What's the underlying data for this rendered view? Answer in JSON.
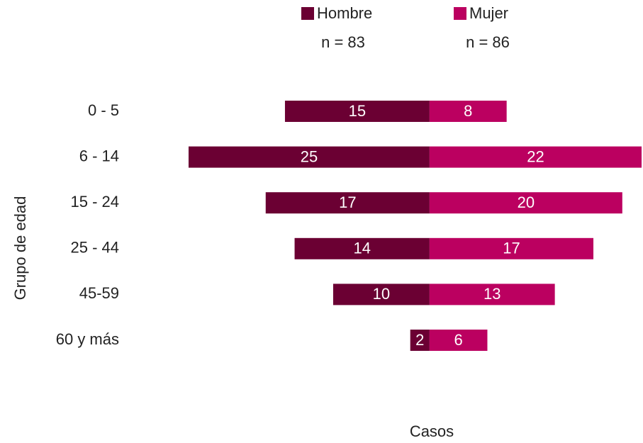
{
  "chart_data": {
    "type": "pyramid",
    "categories": [
      "0 - 5",
      "6 - 14",
      "15 - 24",
      "25 - 44",
      "45-59",
      "60 y más"
    ],
    "series": [
      {
        "name": "Hombre",
        "color": "#6b0033",
        "values": [
          15,
          25,
          17,
          14,
          10,
          2
        ]
      },
      {
        "name": "Mujer",
        "color": "#bb0060",
        "values": [
          8,
          22,
          20,
          17,
          13,
          6
        ]
      }
    ],
    "annotations": [
      "n = 83",
      "n = 86"
    ],
    "x_label": "Casos",
    "y_label": "Grupo de edad",
    "xlim": [
      -25,
      22
    ]
  }
}
